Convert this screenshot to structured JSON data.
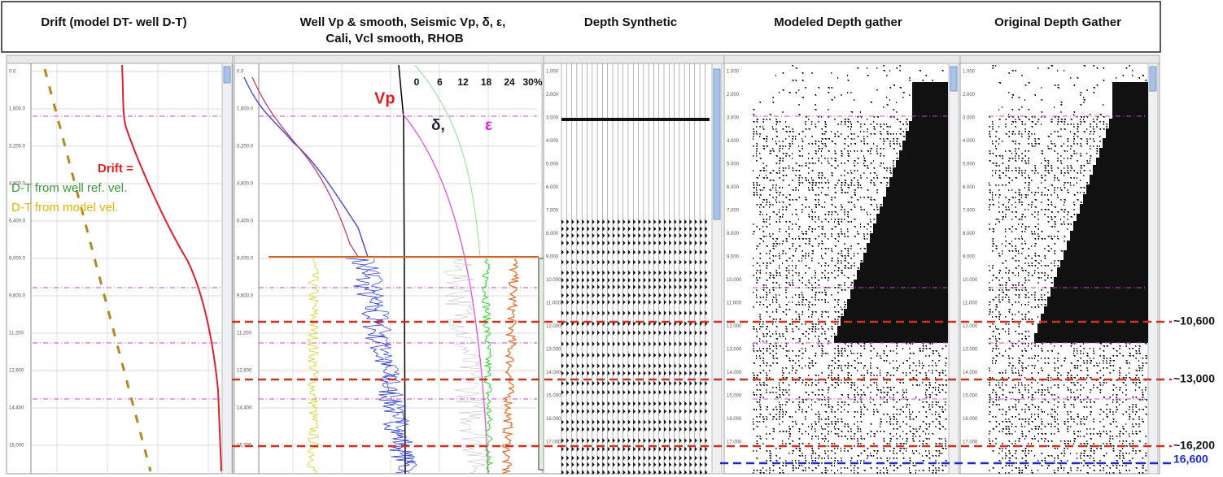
{
  "headers": {
    "drift": "Drift (model DT- well D-T)",
    "logs": [
      "Well Vp & smooth,  Seismic Vp, δ,  ε,",
      "Cali,  Vcl smooth,  RHOB"
    ],
    "synthetic": "Depth Synthetic",
    "modeled": "Modeled Depth gather",
    "original": "Original Depth Gather"
  },
  "drift_panel": {
    "drift_label": "Drift =",
    "well_label": "D-T from well ref. vel.",
    "model_label": "D-T from model vel."
  },
  "log_panel": {
    "vp_label": "Vp",
    "delta_label": "δ,",
    "epsilon_label": "ε",
    "scale": [
      "0",
      "6",
      "12",
      "18",
      "24",
      "30%"
    ]
  },
  "depth_ticks": [
    "0.0",
    "1,600.0",
    "3,200.0",
    "4,800.0",
    "6,400.0",
    "8,000.0",
    "9,600.0",
    "11,200",
    "12,800",
    "14,400",
    "16,000"
  ],
  "gather_ticks": [
    "1.000",
    "2.000",
    "3.000",
    "4.000",
    "5.000",
    "6.000",
    "7.000",
    "8.000",
    "9.000",
    "10.000",
    "11.000",
    "12.000",
    "13.000",
    "14.000",
    "15.000",
    "16.000",
    "17.000"
  ],
  "horizon_labels": [
    "~10,600",
    "~13,000",
    "~16,200",
    "16,600"
  ]
}
